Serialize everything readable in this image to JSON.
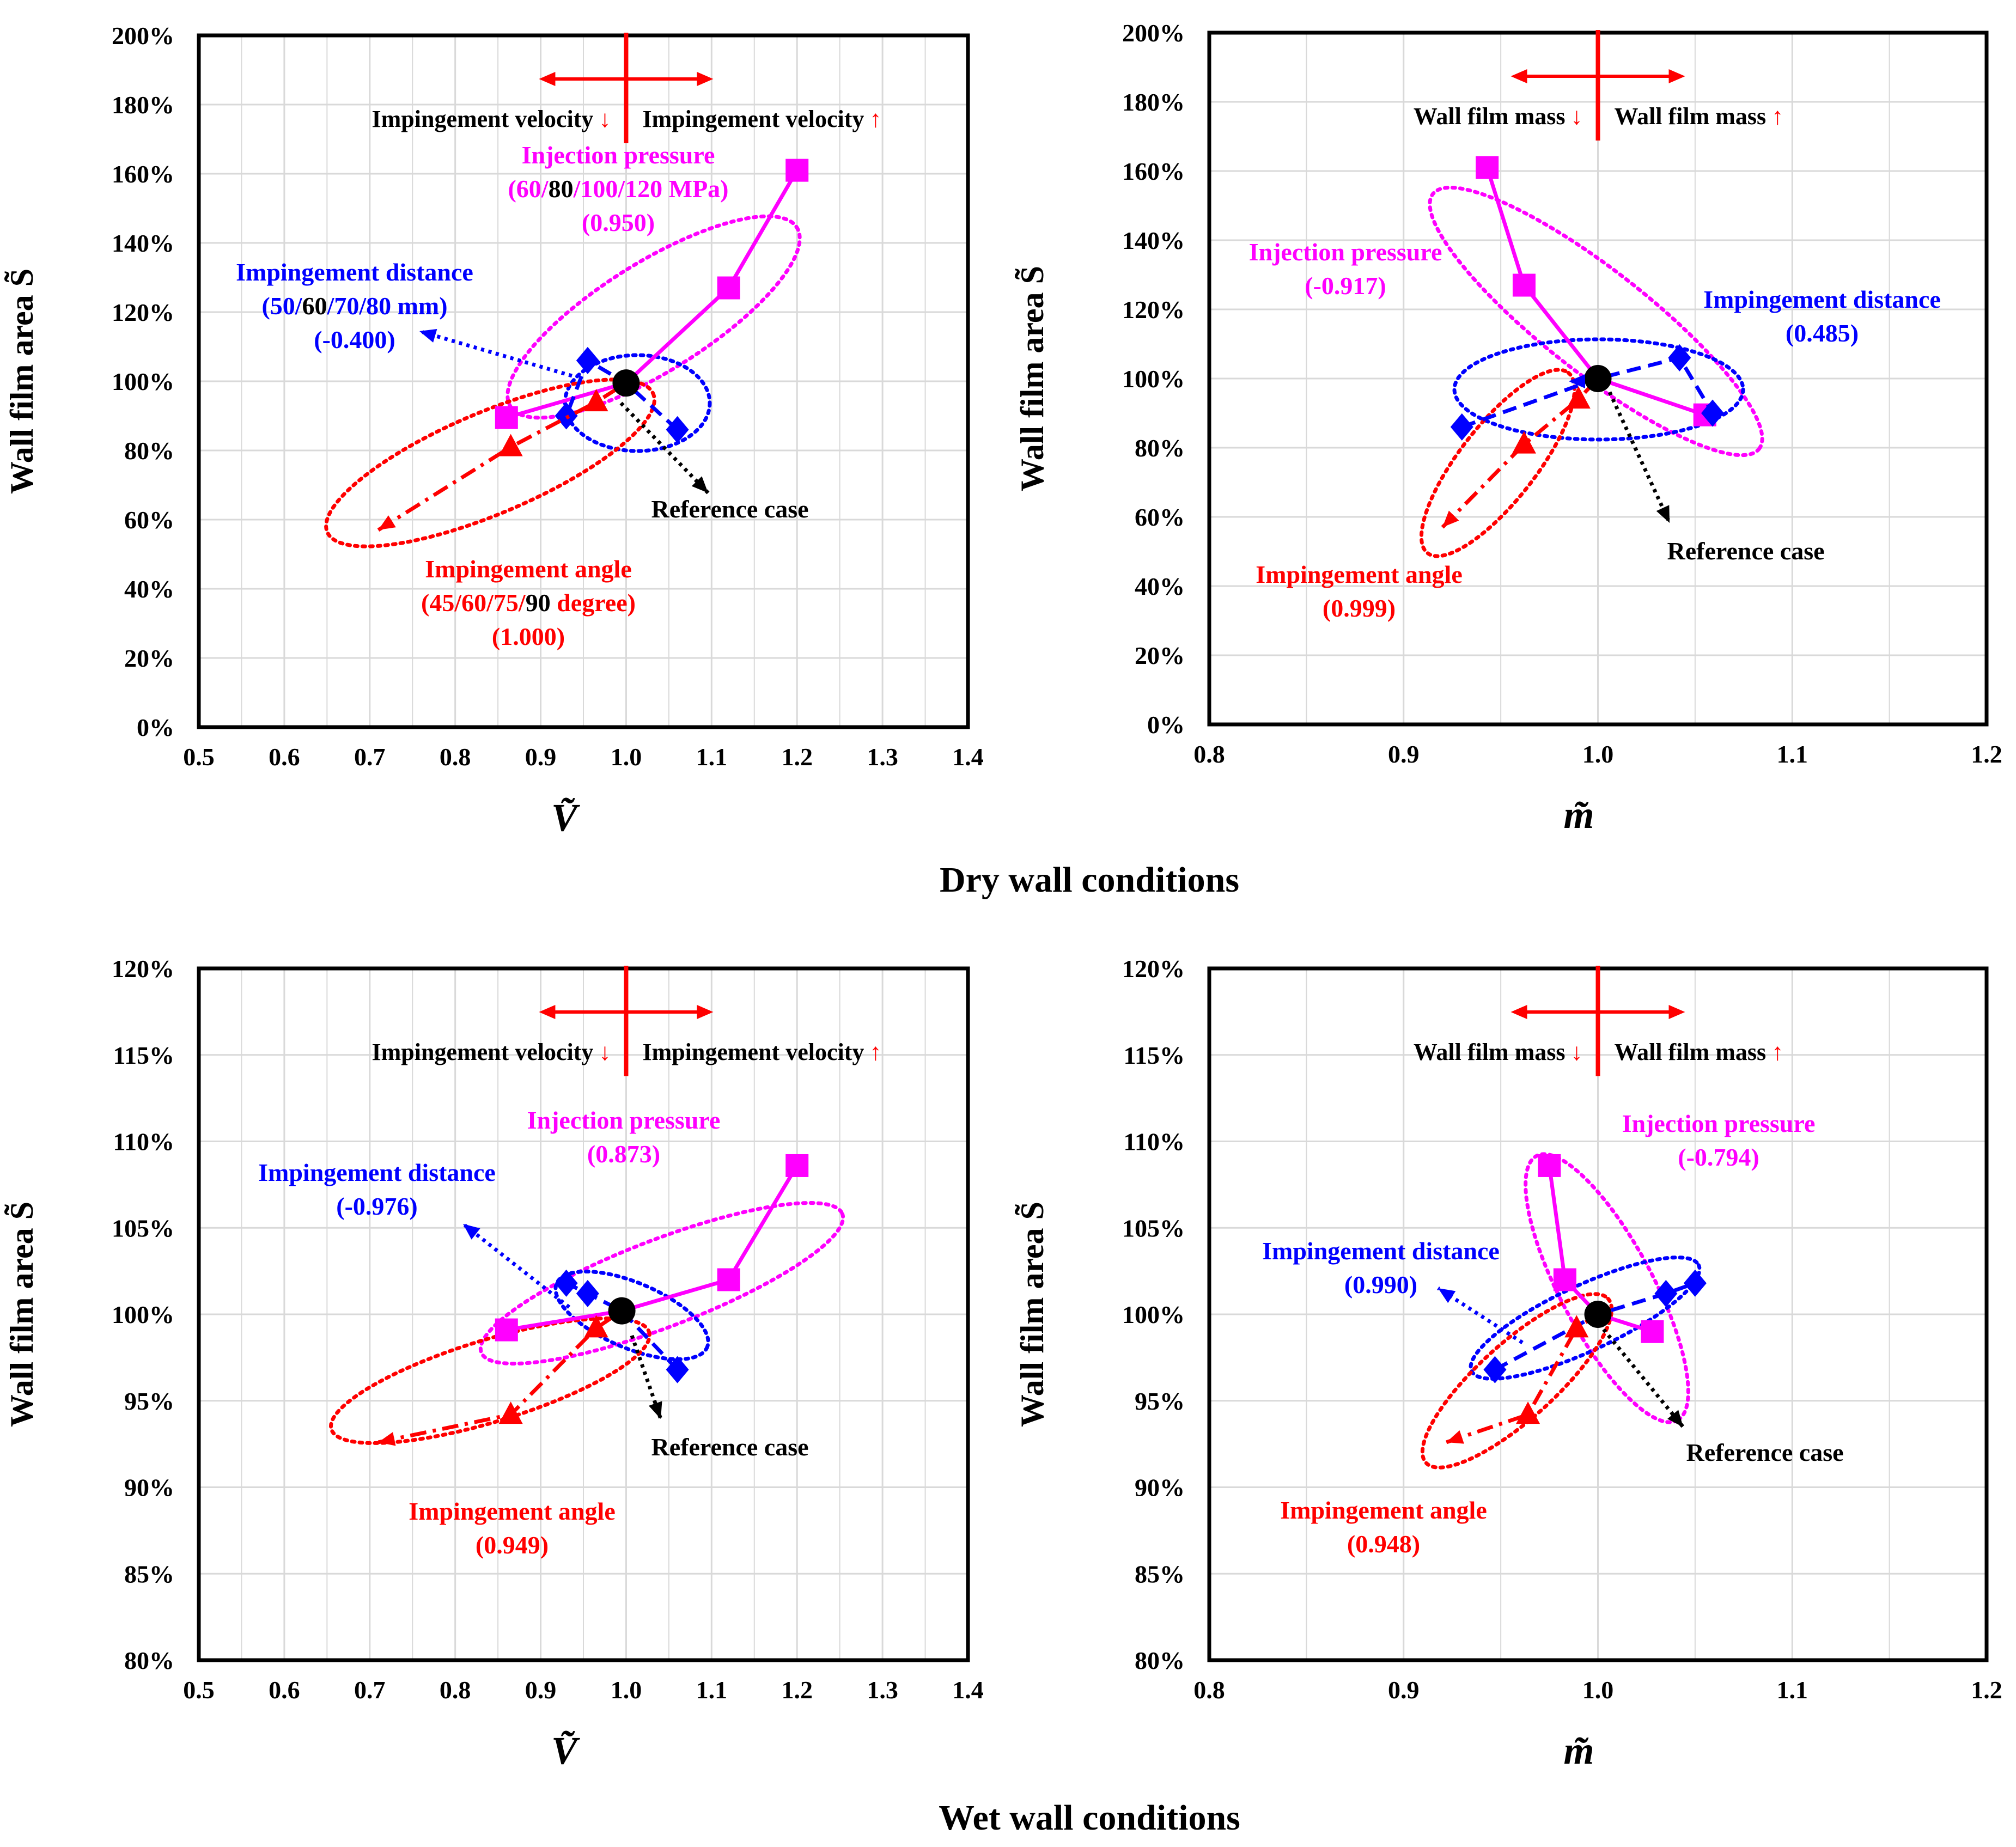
{
  "figure": {
    "captions": [
      "Dry wall conditions",
      "Wet wall conditions"
    ],
    "colors": {
      "pressure": "#ff00ff",
      "distance": "#0000ff",
      "angle": "#ff0000",
      "reference": "#000000",
      "grid": "#d9d9d9",
      "text": "#000000"
    }
  },
  "chart_data": [
    {
      "id": "dry-velocity",
      "type": "scatter",
      "xlabel": "Ṽ",
      "ylabel": "Wall film area S̃",
      "xlim": [
        0.5,
        1.4
      ],
      "xticks": [
        0.5,
        0.6,
        0.7,
        0.8,
        0.9,
        1.0,
        1.1,
        1.2,
        1.3,
        1.4
      ],
      "xtick_labels": [
        "0.5",
        "0.6",
        "0.7",
        "0.8",
        "0.9",
        "1.0",
        "1.1",
        "1.2",
        "1.3",
        "1.4"
      ],
      "ylim": [
        0,
        200
      ],
      "yticks": [
        0,
        20,
        40,
        60,
        80,
        100,
        120,
        140,
        160,
        180,
        200
      ],
      "ytick_labels": [
        "0%",
        "20%",
        "40%",
        "60%",
        "80%",
        "100%",
        "120%",
        "140%",
        "160%",
        "180%",
        "200%"
      ],
      "grid": true,
      "reference": {
        "x": 1.0,
        "y": 99.5,
        "label": "Reference case"
      },
      "direction_labels": {
        "left": "Impingement velocity",
        "left_arrow": "↓",
        "right": "Impingement velocity",
        "right_arrow": "↑"
      },
      "series": [
        {
          "key": "pressure",
          "marker": "square",
          "line": "solid",
          "x": [
            0.86,
            1.0,
            1.12,
            1.2
          ],
          "y": [
            89.5,
            99.5,
            127,
            161
          ],
          "label": {
            "title": "Injection pressure",
            "detail": [
              {
                "t": "(60/",
                "c": "pressure"
              },
              {
                "t": "80",
                "c": "text"
              },
              {
                "t": "/100/120 MPa)",
                "c": "pressure"
              }
            ],
            "corr": "(0.950)"
          }
        },
        {
          "key": "distance",
          "marker": "diamond",
          "line": "dashed",
          "x": [
            1.06,
            1.0,
            0.955,
            0.93
          ],
          "y": [
            86,
            99.5,
            106,
            90
          ],
          "label": {
            "title": "Impingement distance",
            "detail": [
              {
                "t": "(50/",
                "c": "distance"
              },
              {
                "t": "60",
                "c": "text"
              },
              {
                "t": "/70/80 mm)",
                "c": "distance"
              }
            ],
            "corr": "(-0.400)"
          }
        },
        {
          "key": "angle",
          "marker": "triangle",
          "line": "dashdot",
          "x": [
            0.71,
            0.865,
            0.965,
            1.0
          ],
          "y": [
            57,
            81,
            94,
            99.5
          ],
          "label": {
            "title": "Impingement angle",
            "detail": [
              {
                "t": "(45/60/75/",
                "c": "angle"
              },
              {
                "t": "90",
                "c": "text"
              },
              {
                "t": " degree)",
                "c": "angle"
              }
            ],
            "corr": "(1.000)"
          }
        }
      ]
    },
    {
      "id": "dry-mass",
      "type": "scatter",
      "xlabel": "m̃",
      "ylabel": "Wall film area S̃",
      "xlim": [
        0.8,
        1.2
      ],
      "xticks": [
        0.8,
        0.9,
        1.0,
        1.1,
        1.2
      ],
      "xtick_labels": [
        "0.8",
        "0.9",
        "1.0",
        "1.1",
        "1.2"
      ],
      "ylim": [
        0,
        200
      ],
      "yticks": [
        0,
        20,
        40,
        60,
        80,
        100,
        120,
        140,
        160,
        180,
        200
      ],
      "ytick_labels": [
        "0%",
        "20%",
        "40%",
        "60%",
        "80%",
        "100%",
        "120%",
        "140%",
        "160%",
        "180%",
        "200%"
      ],
      "grid": true,
      "reference": {
        "x": 1.0,
        "y": 100,
        "label": "Reference case"
      },
      "direction_labels": {
        "left": "Wall film mass",
        "left_arrow": "↓",
        "right": "Wall film mass",
        "right_arrow": "↑"
      },
      "series": [
        {
          "key": "pressure",
          "marker": "square",
          "line": "solid",
          "x": [
            1.055,
            1.0,
            0.962,
            0.943
          ],
          "y": [
            89.5,
            100,
            127,
            161
          ],
          "label": {
            "title": "Injection pressure",
            "detail": [],
            "corr": "(-0.917)"
          }
        },
        {
          "key": "distance",
          "marker": "diamond",
          "line": "dashed",
          "x": [
            0.93,
            1.0,
            1.042,
            1.059
          ],
          "y": [
            86,
            100,
            106,
            90
          ],
          "label": {
            "title": "Impingement distance",
            "detail": [],
            "corr": "(0.485)"
          }
        },
        {
          "key": "angle",
          "marker": "triangle",
          "line": "dashdot",
          "x": [
            0.92,
            0.962,
            0.99,
            1.0
          ],
          "y": [
            57,
            81,
            94,
            100
          ],
          "label": {
            "title": "Impingement angle",
            "detail": [],
            "corr": "(0.999)"
          }
        }
      ]
    },
    {
      "id": "wet-velocity",
      "type": "scatter",
      "xlabel": "Ṽ",
      "ylabel": "Wall film area S̃",
      "xlim": [
        0.5,
        1.4
      ],
      "xticks": [
        0.5,
        0.6,
        0.7,
        0.8,
        0.9,
        1.0,
        1.1,
        1.2,
        1.3,
        1.4
      ],
      "xtick_labels": [
        "0.5",
        "0.6",
        "0.7",
        "0.8",
        "0.9",
        "1.0",
        "1.1",
        "1.2",
        "1.3",
        "1.4"
      ],
      "ylim": [
        80,
        120
      ],
      "yticks": [
        80,
        85,
        90,
        95,
        100,
        105,
        110,
        115,
        120
      ],
      "ytick_labels": [
        "80%",
        "85%",
        "90%",
        "95%",
        "100%",
        "105%",
        "110%",
        "115%",
        "120%"
      ],
      "grid": true,
      "reference": {
        "x": 0.995,
        "y": 100.2,
        "label": "Reference case"
      },
      "direction_labels": {
        "left": "Impingement velocity",
        "left_arrow": "↓",
        "right": "Impingement velocity",
        "right_arrow": "↑"
      },
      "series": [
        {
          "key": "pressure",
          "marker": "square",
          "line": "solid",
          "x": [
            0.86,
            0.995,
            1.12,
            1.2
          ],
          "y": [
            99.1,
            100.2,
            102,
            108.6
          ],
          "label": {
            "title": "Injection pressure",
            "detail": [],
            "corr": "(0.873)"
          }
        },
        {
          "key": "distance",
          "marker": "diamond",
          "line": "dashed",
          "x": [
            1.06,
            0.995,
            0.955,
            0.93
          ],
          "y": [
            96.8,
            100.2,
            101.2,
            101.8
          ],
          "label": {
            "title": "Impingement distance",
            "detail": [],
            "corr": "(-0.976)"
          }
        },
        {
          "key": "angle",
          "marker": "triangle",
          "line": "dashdot",
          "x": [
            0.71,
            0.865,
            0.965,
            0.995
          ],
          "y": [
            92.6,
            94.2,
            99.2,
            100.2
          ],
          "label": {
            "title": "Impingement angle",
            "detail": [],
            "corr": "(0.949)"
          }
        }
      ]
    },
    {
      "id": "wet-mass",
      "type": "scatter",
      "xlabel": "m̃",
      "ylabel": "Wall film area S̃",
      "xlim": [
        0.8,
        1.2
      ],
      "xticks": [
        0.8,
        0.9,
        1.0,
        1.1,
        1.2
      ],
      "xtick_labels": [
        "0.8",
        "0.9",
        "1.0",
        "1.1",
        "1.2"
      ],
      "ylim": [
        80,
        120
      ],
      "yticks": [
        80,
        85,
        90,
        95,
        100,
        105,
        110,
        115,
        120
      ],
      "ytick_labels": [
        "80%",
        "85%",
        "90%",
        "95%",
        "100%",
        "105%",
        "110%",
        "115%",
        "120%"
      ],
      "grid": true,
      "reference": {
        "x": 1.0,
        "y": 100,
        "label": "Reference case"
      },
      "direction_labels": {
        "left": "Wall film mass",
        "left_arrow": "↓",
        "right": "Wall film mass",
        "right_arrow": "↑"
      },
      "series": [
        {
          "key": "pressure",
          "marker": "square",
          "line": "solid",
          "x": [
            1.028,
            1.0,
            0.983,
            0.975
          ],
          "y": [
            99,
            100,
            102,
            108.6
          ],
          "label": {
            "title": "Injection pressure",
            "detail": [],
            "corr": "(-0.794)"
          }
        },
        {
          "key": "distance",
          "marker": "diamond",
          "line": "dashed",
          "x": [
            0.947,
            1.0,
            1.035,
            1.05
          ],
          "y": [
            96.8,
            100,
            101.2,
            101.8
          ],
          "label": {
            "title": "Impingement distance",
            "detail": [],
            "corr": "(0.990)"
          }
        },
        {
          "key": "angle",
          "marker": "triangle",
          "line": "dashdot",
          "x": [
            0.922,
            0.964,
            0.989,
            1.0
          ],
          "y": [
            92.6,
            94.2,
            99.2,
            100
          ],
          "label": {
            "title": "Impingement angle",
            "detail": [],
            "corr": "(0.948)"
          }
        }
      ]
    }
  ]
}
